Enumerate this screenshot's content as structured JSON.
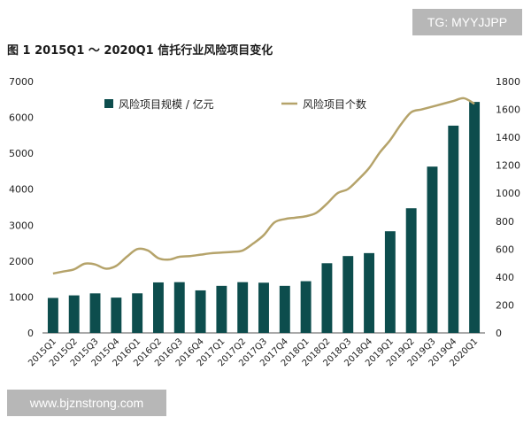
{
  "header": {
    "title": "图 1  2015Q1 ～ 2020Q1 信托行业风险项目变化"
  },
  "watermarks": {
    "top_right": "TG: MYYJJPP",
    "bottom_left": "www.bjznstrong.com"
  },
  "colors": {
    "bar": "#0d4d4d",
    "line": "#b5a36a",
    "axis": "#555555"
  },
  "chart_data": {
    "type": "bar+line",
    "title": "图 1  2015Q1 ～ 2020Q1 信托行业风险项目变化",
    "categories": [
      "2015Q1",
      "2015Q2",
      "2015Q3",
      "2015Q4",
      "2016Q1",
      "2016Q2",
      "2016Q3",
      "2016Q4",
      "2017Q1",
      "2017Q2",
      "2017Q3",
      "2017Q4",
      "2018Q1",
      "2018Q2",
      "2018Q3",
      "2018Q4",
      "2019Q1",
      "2019Q2",
      "2019Q3",
      "2019Q4",
      "2020Q1"
    ],
    "series": [
      {
        "name": "风险项目规模 / 亿元",
        "type": "bar",
        "axis": "left",
        "values": [
          974,
          1045,
          1101,
          983,
          1102,
          1406,
          1413,
          1184,
          1310,
          1413,
          1398,
          1310,
          1440,
          1940,
          2140,
          2222,
          2830,
          3470,
          4630,
          5770,
          6430
        ]
      },
      {
        "name": "风险项目个数",
        "type": "line",
        "axis": "right",
        "x": [
          0,
          0.5,
          1,
          1.5,
          2,
          2.5,
          3,
          3.5,
          4,
          4.5,
          5,
          5.5,
          6,
          6.5,
          7,
          7.5,
          8,
          8.5,
          9,
          9.5,
          10,
          10.5,
          11,
          11.5,
          12,
          12.5,
          13,
          13.5,
          14,
          14.5,
          15,
          15.5,
          16,
          16.5,
          17,
          17.5,
          18,
          18.5,
          19,
          19.5,
          20
        ],
        "values": [
          425,
          440,
          455,
          495,
          490,
          460,
          480,
          545,
          600,
          590,
          535,
          525,
          545,
          550,
          560,
          570,
          575,
          580,
          590,
          640,
          700,
          790,
          815,
          825,
          835,
          860,
          925,
          1000,
          1030,
          1100,
          1180,
          1290,
          1380,
          1490,
          1580,
          1600,
          1620,
          1640,
          1660,
          1680,
          1640
        ]
      }
    ],
    "left_axis": {
      "min": 0,
      "max": 7000,
      "ticks": [
        "0",
        "1000",
        "2000",
        "3000",
        "4000",
        "5000",
        "6000",
        "7000"
      ]
    },
    "right_axis": {
      "min": 0,
      "max": 1800,
      "ticks": [
        "0",
        "200",
        "400",
        "600",
        "800",
        "1000",
        "1200",
        "1400",
        "1600",
        "1800"
      ]
    },
    "legend": {
      "placement": "top-left",
      "items": [
        "风险项目规模 / 亿元",
        "风险项目个数"
      ]
    }
  }
}
